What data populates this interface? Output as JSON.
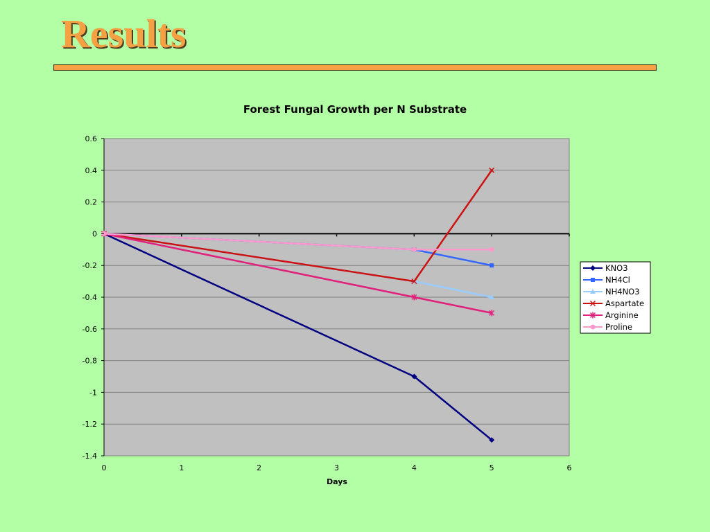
{
  "slide": {
    "title": "Results"
  },
  "chart_data": {
    "type": "line",
    "title": "Forest Fungal Growth per N Substrate",
    "xlabel": "Days",
    "ylabel": "",
    "xlim": [
      0,
      6
    ],
    "ylim": [
      -1.4,
      0.6
    ],
    "x_ticks": [
      "0",
      "1",
      "2",
      "3",
      "4",
      "5",
      "6"
    ],
    "y_ticks": [
      "0.6",
      "0.4",
      "0.2",
      "0",
      "-0.2",
      "-0.4",
      "-0.6",
      "-0.8",
      "-1",
      "-1.2",
      "-1.4"
    ],
    "grid": "horizontal",
    "plot_background": "#c0c0c0",
    "legend_position": "right",
    "series": [
      {
        "name": "KNO3",
        "color": "#000080",
        "marker": "diamond",
        "x": [
          0,
          4,
          5
        ],
        "y": [
          0,
          -0.9,
          -1.3
        ]
      },
      {
        "name": "NH4Cl",
        "color": "#3366ff",
        "marker": "square",
        "x": [
          0,
          4,
          5
        ],
        "y": [
          0,
          -0.1,
          -0.2
        ]
      },
      {
        "name": "NH4NO3",
        "color": "#99ccff",
        "marker": "triangle",
        "x": [
          0,
          4,
          5
        ],
        "y": [
          0,
          -0.3,
          -0.4
        ]
      },
      {
        "name": "Aspartate",
        "color": "#cc1111",
        "marker": "x",
        "x": [
          0,
          4,
          5
        ],
        "y": [
          0,
          -0.3,
          0.4
        ]
      },
      {
        "name": "Arginine",
        "color": "#e0207a",
        "marker": "star",
        "x": [
          0,
          4,
          5
        ],
        "y": [
          0,
          -0.4,
          -0.5
        ]
      },
      {
        "name": "Proline",
        "color": "#ff99cc",
        "marker": "circle",
        "x": [
          0,
          4,
          5
        ],
        "y": [
          0,
          -0.1,
          -0.1
        ]
      }
    ]
  }
}
